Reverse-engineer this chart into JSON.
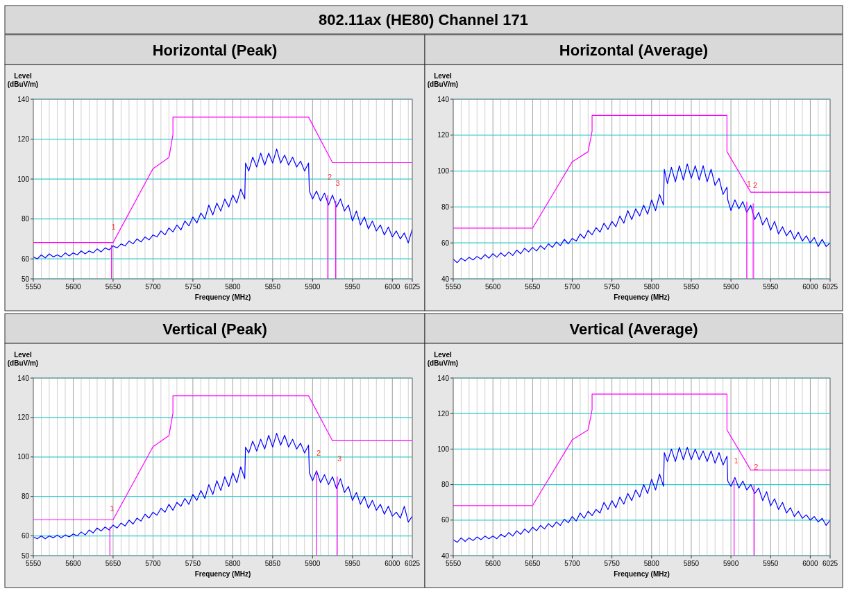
{
  "chart_data": [
    {
      "type": "line",
      "title": "Horizontal (Peak)",
      "xlabel": "Frequency (MHz)",
      "ylabel": "Level (dBuV/m)",
      "grid": true,
      "annotations": [
        "802.11ax (HE80) Channel 171",
        {
          "text": "1",
          "x": 5648,
          "y": 67
        },
        {
          "text": "2",
          "x": 5919,
          "y": 92
        },
        {
          "text": "3",
          "x": 5929,
          "y": 89
        }
      ],
      "xlim": [
        5550,
        6025
      ],
      "ylim": [
        50,
        140
      ],
      "yticks": [
        50,
        60,
        80,
        100,
        120,
        140
      ],
      "xticks": [
        5550,
        {
          "value": 5560,
          "label": null
        },
        {
          "value": 5570,
          "label": null
        },
        {
          "value": 5580,
          "label": null
        },
        {
          "value": 5590,
          "label": null
        },
        5600,
        {
          "value": 5610,
          "label": null
        },
        {
          "value": 5620,
          "label": null
        },
        {
          "value": 5630,
          "label": null
        },
        {
          "value": 5640,
          "label": null
        },
        5650,
        {
          "value": 5660,
          "label": null
        },
        {
          "value": 5670,
          "label": null
        },
        {
          "value": 5680,
          "label": null
        },
        {
          "value": 5690,
          "label": null
        },
        5700,
        {
          "value": 5710,
          "label": null
        },
        {
          "value": 5720,
          "label": null
        },
        {
          "value": 5730,
          "label": null
        },
        {
          "value": 5740,
          "label": null
        },
        5750,
        {
          "value": 5760,
          "label": null
        },
        {
          "value": 5770,
          "label": null
        },
        {
          "value": 5780,
          "label": null
        },
        {
          "value": 5790,
          "label": null
        },
        5800,
        {
          "value": 5810,
          "label": null
        },
        {
          "value": 5820,
          "label": null
        },
        {
          "value": 5830,
          "label": null
        },
        {
          "value": 5840,
          "label": null
        },
        5850,
        {
          "value": 5860,
          "label": null
        },
        {
          "value": 5870,
          "label": null
        },
        {
          "value": 5880,
          "label": null
        },
        {
          "value": 5890,
          "label": null
        },
        5900,
        {
          "value": 5910,
          "label": null
        },
        {
          "value": 5920,
          "label": null
        },
        {
          "value": 5930,
          "label": null
        },
        {
          "value": 5940,
          "label": null
        },
        5950,
        {
          "value": 5960,
          "label": null
        },
        {
          "value": 5970,
          "label": null
        },
        {
          "value": 5980,
          "label": null
        },
        {
          "value": 5990,
          "label": null
        },
        6000,
        {
          "value": 6010,
          "label": null
        },
        {
          "value": 6020,
          "label": null
        },
        6025
      ],
      "x": [
        5550,
        5555,
        5560,
        5565,
        5570,
        5575,
        5580,
        5585,
        5590,
        5595,
        5600,
        5605,
        5610,
        5615,
        5620,
        5625,
        5630,
        5635,
        5640,
        5645,
        5650,
        5655,
        5660,
        5665,
        5670,
        5675,
        5680,
        5685,
        5690,
        5695,
        5700,
        5705,
        5710,
        5715,
        5720,
        5725,
        5730,
        5735,
        5740,
        5745,
        5750,
        5755,
        5760,
        5765,
        5770,
        5775,
        5780,
        5785,
        5790,
        5795,
        5800,
        5805,
        5810,
        5815,
        5816,
        5820,
        5825,
        5830,
        5835,
        5840,
        5845,
        5850,
        5855,
        5860,
        5865,
        5870,
        5875,
        5880,
        5885,
        5890,
        5895,
        5896,
        5900,
        5905,
        5910,
        5915,
        5920,
        5925,
        5930,
        5935,
        5940,
        5945,
        5950,
        5955,
        5960,
        5965,
        5970,
        5975,
        5980,
        5985,
        5990,
        5995,
        6000,
        6005,
        6010,
        6015,
        6020,
        6025
      ],
      "series": [
        {
          "color": "#0000ff",
          "values": [
            61,
            60,
            62,
            60.5,
            62.5,
            61,
            62,
            61,
            63,
            61.5,
            63,
            62,
            64,
            62.5,
            64,
            63,
            65,
            63.5,
            65.5,
            64.5,
            66.5,
            65.5,
            67.5,
            66.5,
            69,
            67.5,
            70,
            68.5,
            71,
            69.5,
            72,
            71,
            74,
            72,
            75.5,
            73.5,
            77,
            74.5,
            79,
            76.5,
            81,
            78,
            83,
            80,
            87,
            82,
            88,
            84,
            90,
            86,
            92,
            88,
            95,
            90,
            108,
            104,
            111,
            106,
            113,
            107,
            113,
            108,
            115,
            108,
            112,
            107,
            111,
            106,
            109,
            104,
            108,
            94,
            90,
            94,
            89,
            93,
            87,
            92,
            86,
            90,
            84,
            87,
            79,
            84,
            77,
            81,
            75,
            79,
            74,
            77,
            72,
            76,
            71,
            74,
            70,
            73,
            68,
            75
          ]
        },
        {
          "color": "#ff00ff",
          "x": [
            5550,
            5650,
            5700,
            5720,
            5725,
            5725,
            5895,
            5925,
            6025
          ],
          "values": [
            68.2,
            68.2,
            105.2,
            110.8,
            122.2,
            131,
            131,
            108.2,
            108.2
          ]
        }
      ]
    },
    {
      "type": "line",
      "title": "Horizontal (Average)",
      "xlabel": "Frequency (MHz)",
      "ylabel": "Level (dBuV/m)",
      "grid": true,
      "annotations": [
        {
          "text": "1",
          "x": 5920,
          "y": 83
        },
        {
          "text": "2",
          "x": 5928,
          "y": 82
        }
      ],
      "xlim": [
        5550,
        6025
      ],
      "ylim": [
        40,
        140
      ],
      "yticks": [
        40,
        60,
        80,
        100,
        120,
        140
      ],
      "xticks": [
        5550,
        {
          "value": 5560,
          "label": null
        },
        {
          "value": 5570,
          "label": null
        },
        {
          "value": 5580,
          "label": null
        },
        {
          "value": 5590,
          "label": null
        },
        5600,
        {
          "value": 5610,
          "label": null
        },
        {
          "value": 5620,
          "label": null
        },
        {
          "value": 5630,
          "label": null
        },
        {
          "value": 5640,
          "label": null
        },
        5650,
        {
          "value": 5660,
          "label": null
        },
        {
          "value": 5670,
          "label": null
        },
        {
          "value": 5680,
          "label": null
        },
        {
          "value": 5690,
          "label": null
        },
        5700,
        {
          "value": 5710,
          "label": null
        },
        {
          "value": 5720,
          "label": null
        },
        {
          "value": 5730,
          "label": null
        },
        {
          "value": 5740,
          "label": null
        },
        5750,
        {
          "value": 5760,
          "label": null
        },
        {
          "value": 5770,
          "label": null
        },
        {
          "value": 5780,
          "label": null
        },
        {
          "value": 5790,
          "label": null
        },
        5800,
        {
          "value": 5810,
          "label": null
        },
        {
          "value": 5820,
          "label": null
        },
        {
          "value": 5830,
          "label": null
        },
        {
          "value": 5840,
          "label": null
        },
        5850,
        {
          "value": 5860,
          "label": null
        },
        {
          "value": 5870,
          "label": null
        },
        {
          "value": 5880,
          "label": null
        },
        {
          "value": 5890,
          "label": null
        },
        5900,
        {
          "value": 5910,
          "label": null
        },
        {
          "value": 5920,
          "label": null
        },
        {
          "value": 5930,
          "label": null
        },
        {
          "value": 5940,
          "label": null
        },
        5950,
        {
          "value": 5960,
          "label": null
        },
        {
          "value": 5970,
          "label": null
        },
        {
          "value": 5980,
          "label": null
        },
        {
          "value": 5990,
          "label": null
        },
        6000,
        {
          "value": 6010,
          "label": null
        },
        {
          "value": 6020,
          "label": null
        },
        6025
      ],
      "x": [
        5550,
        5555,
        5560,
        5565,
        5570,
        5575,
        5580,
        5585,
        5590,
        5595,
        5600,
        5605,
        5610,
        5615,
        5620,
        5625,
        5630,
        5635,
        5640,
        5645,
        5650,
        5655,
        5660,
        5665,
        5670,
        5675,
        5680,
        5685,
        5690,
        5695,
        5700,
        5705,
        5710,
        5715,
        5720,
        5725,
        5730,
        5735,
        5740,
        5745,
        5750,
        5755,
        5760,
        5765,
        5770,
        5775,
        5780,
        5785,
        5790,
        5795,
        5800,
        5805,
        5810,
        5815,
        5816,
        5820,
        5825,
        5830,
        5835,
        5840,
        5845,
        5850,
        5855,
        5860,
        5865,
        5870,
        5875,
        5880,
        5885,
        5890,
        5895,
        5896,
        5900,
        5905,
        5910,
        5915,
        5920,
        5925,
        5930,
        5935,
        5940,
        5945,
        5950,
        5955,
        5960,
        5965,
        5970,
        5975,
        5980,
        5985,
        5990,
        5995,
        6000,
        6005,
        6010,
        6015,
        6020,
        6025
      ],
      "series": [
        {
          "color": "#0000ff",
          "values": [
            51,
            49,
            51.5,
            50,
            52,
            50.5,
            52.5,
            51,
            53.5,
            51.5,
            54,
            52,
            54.5,
            52.5,
            55,
            53,
            56,
            54,
            57,
            55,
            57.5,
            55.5,
            58.5,
            56.5,
            59.5,
            57.5,
            60.5,
            58.5,
            62,
            59.5,
            62.5,
            61,
            65,
            62.5,
            67,
            64.5,
            68.5,
            66,
            71,
            67.5,
            72,
            69,
            75,
            71,
            78,
            73,
            79,
            75,
            81,
            76,
            84,
            78,
            87,
            81,
            101,
            93,
            102,
            94,
            103,
            95,
            104,
            96,
            103,
            95,
            103,
            94,
            101,
            92,
            96,
            87,
            91,
            84,
            78,
            84,
            79,
            83,
            77,
            81,
            73,
            77,
            70,
            74,
            67,
            72,
            65,
            69,
            64,
            67,
            62,
            66,
            61,
            64,
            60,
            63,
            58,
            62,
            58,
            60
          ]
        },
        {
          "color": "#ff00ff",
          "x": [
            5550,
            5650,
            5700,
            5720,
            5725,
            5725,
            5895,
            5895,
            5925,
            6025
          ],
          "values": [
            68.2,
            68.2,
            105.2,
            110.8,
            122.2,
            131,
            131,
            110.8,
            88.2,
            88.2
          ]
        }
      ]
    },
    {
      "type": "line",
      "title": "Vertical (Peak)",
      "xlabel": "Frequency (MHz)",
      "ylabel": "Level (dBuV/m)",
      "grid": true,
      "annotations": [
        {
          "text": "1",
          "x": 5646,
          "y": 64.6
        },
        {
          "text": "2",
          "x": 5905,
          "y": 92.8
        },
        {
          "text": "3",
          "x": 5931,
          "y": 90.1
        }
      ],
      "xlim": [
        5550,
        6025
      ],
      "ylim": [
        50,
        140
      ],
      "yticks": [
        50,
        60,
        80,
        100,
        120,
        140
      ],
      "xticks": [
        5550,
        {
          "value": 5560,
          "label": null
        },
        {
          "value": 5570,
          "label": null
        },
        {
          "value": 5580,
          "label": null
        },
        {
          "value": 5590,
          "label": null
        },
        5600,
        {
          "value": 5610,
          "label": null
        },
        {
          "value": 5620,
          "label": null
        },
        {
          "value": 5630,
          "label": null
        },
        {
          "value": 5640,
          "label": null
        },
        5650,
        {
          "value": 5660,
          "label": null
        },
        {
          "value": 5670,
          "label": null
        },
        {
          "value": 5680,
          "label": null
        },
        {
          "value": 5690,
          "label": null
        },
        5700,
        {
          "value": 5710,
          "label": null
        },
        {
          "value": 5720,
          "label": null
        },
        {
          "value": 5730,
          "label": null
        },
        {
          "value": 5740,
          "label": null
        },
        5750,
        {
          "value": 5760,
          "label": null
        },
        {
          "value": 5770,
          "label": null
        },
        {
          "value": 5780,
          "label": null
        },
        {
          "value": 5790,
          "label": null
        },
        5800,
        {
          "value": 5810,
          "label": null
        },
        {
          "value": 5820,
          "label": null
        },
        {
          "value": 5830,
          "label": null
        },
        {
          "value": 5840,
          "label": null
        },
        5850,
        {
          "value": 5860,
          "label": null
        },
        {
          "value": 5870,
          "label": null
        },
        {
          "value": 5880,
          "label": null
        },
        {
          "value": 5890,
          "label": null
        },
        5900,
        {
          "value": 5910,
          "label": null
        },
        {
          "value": 5920,
          "label": null
        },
        {
          "value": 5930,
          "label": null
        },
        {
          "value": 5940,
          "label": null
        },
        5950,
        {
          "value": 5960,
          "label": null
        },
        {
          "value": 5970,
          "label": null
        },
        {
          "value": 5980,
          "label": null
        },
        {
          "value": 5990,
          "label": null
        },
        6000,
        {
          "value": 6010,
          "label": null
        },
        {
          "value": 6020,
          "label": null
        },
        6025
      ],
      "x": [
        5550,
        5555,
        5560,
        5565,
        5570,
        5575,
        5580,
        5585,
        5590,
        5595,
        5600,
        5605,
        5610,
        5615,
        5620,
        5625,
        5630,
        5635,
        5640,
        5645,
        5650,
        5655,
        5660,
        5665,
        5670,
        5675,
        5680,
        5685,
        5690,
        5695,
        5700,
        5705,
        5710,
        5715,
        5720,
        5725,
        5730,
        5735,
        5740,
        5745,
        5750,
        5755,
        5760,
        5765,
        5770,
        5775,
        5780,
        5785,
        5790,
        5795,
        5800,
        5805,
        5810,
        5815,
        5816,
        5820,
        5825,
        5830,
        5835,
        5840,
        5845,
        5850,
        5855,
        5860,
        5865,
        5870,
        5875,
        5880,
        5885,
        5890,
        5895,
        5896,
        5900,
        5905,
        5910,
        5915,
        5920,
        5925,
        5930,
        5935,
        5940,
        5945,
        5950,
        5955,
        5960,
        5965,
        5970,
        5975,
        5980,
        5985,
        5990,
        5995,
        6000,
        6005,
        6010,
        6015,
        6020,
        6025
      ],
      "series": [
        {
          "color": "#0000ff",
          "values": [
            59.5,
            58.5,
            60,
            58.5,
            60,
            59,
            60.5,
            59,
            60.5,
            59.5,
            61,
            60,
            62,
            60.5,
            63,
            61.5,
            64,
            62.5,
            64.5,
            63,
            65.5,
            64,
            66.5,
            65,
            68,
            66,
            69,
            67.5,
            71,
            69,
            72,
            70.5,
            74,
            72,
            76,
            73,
            77,
            75,
            79,
            76,
            81,
            78,
            83,
            79,
            86,
            81,
            88,
            83,
            90,
            85,
            92,
            87,
            95,
            89,
            105,
            102,
            108,
            103,
            109,
            104,
            111,
            105,
            112,
            106,
            111,
            105,
            109,
            104,
            107,
            102,
            106,
            92,
            88,
            93,
            87,
            91,
            86,
            90,
            84,
            89,
            82,
            85,
            78,
            82,
            76,
            80,
            74,
            78,
            73,
            76,
            71,
            75,
            70,
            72,
            69,
            75,
            67,
            70
          ]
        },
        {
          "color": "#ff00ff",
          "x": [
            5550,
            5650,
            5700,
            5720,
            5725,
            5725,
            5895,
            5925,
            6025
          ],
          "values": [
            68.2,
            68.2,
            105.2,
            110.8,
            122.2,
            131,
            131,
            108.2,
            108.2
          ]
        }
      ]
    },
    {
      "type": "line",
      "title": "Vertical (Average)",
      "xlabel": "Frequency (MHz)",
      "ylabel": "Level (dBuV/m)",
      "grid": true,
      "annotations": [
        {
          "text": "1",
          "x": 5904,
          "y": 83.4
        },
        {
          "text": "2",
          "x": 5929,
          "y": 79.7
        }
      ],
      "xlim": [
        5550,
        6025
      ],
      "ylim": [
        40,
        140
      ],
      "yticks": [
        40,
        60,
        80,
        100,
        120,
        140
      ],
      "xticks": [
        5550,
        {
          "value": 5560,
          "label": null
        },
        {
          "value": 5570,
          "label": null
        },
        {
          "value": 5580,
          "label": null
        },
        {
          "value": 5590,
          "label": null
        },
        5600,
        {
          "value": 5610,
          "label": null
        },
        {
          "value": 5620,
          "label": null
        },
        {
          "value": 5630,
          "label": null
        },
        {
          "value": 5640,
          "label": null
        },
        5650,
        {
          "value": 5660,
          "label": null
        },
        {
          "value": 5670,
          "label": null
        },
        {
          "value": 5680,
          "label": null
        },
        {
          "value": 5690,
          "label": null
        },
        5700,
        {
          "value": 5710,
          "label": null
        },
        {
          "value": 5720,
          "label": null
        },
        {
          "value": 5730,
          "label": null
        },
        {
          "value": 5740,
          "label": null
        },
        5750,
        {
          "value": 5760,
          "label": null
        },
        {
          "value": 5770,
          "label": null
        },
        {
          "value": 5780,
          "label": null
        },
        {
          "value": 5790,
          "label": null
        },
        5800,
        {
          "value": 5810,
          "label": null
        },
        {
          "value": 5820,
          "label": null
        },
        {
          "value": 5830,
          "label": null
        },
        {
          "value": 5840,
          "label": null
        },
        5850,
        {
          "value": 5860,
          "label": null
        },
        {
          "value": 5870,
          "label": null
        },
        {
          "value": 5880,
          "label": null
        },
        {
          "value": 5890,
          "label": null
        },
        5900,
        {
          "value": 5910,
          "label": null
        },
        {
          "value": 5920,
          "label": null
        },
        {
          "value": 5930,
          "label": null
        },
        {
          "value": 5940,
          "label": null
        },
        5950,
        {
          "value": 5960,
          "label": null
        },
        {
          "value": 5970,
          "label": null
        },
        {
          "value": 5980,
          "label": null
        },
        {
          "value": 5990,
          "label": null
        },
        6000,
        {
          "value": 6010,
          "label": null
        },
        {
          "value": 6020,
          "label": null
        },
        6025
      ],
      "x": [
        5550,
        5555,
        5560,
        5565,
        5570,
        5575,
        5580,
        5585,
        5590,
        5595,
        5600,
        5605,
        5610,
        5615,
        5620,
        5625,
        5630,
        5635,
        5640,
        5645,
        5650,
        5655,
        5660,
        5665,
        5670,
        5675,
        5680,
        5685,
        5690,
        5695,
        5700,
        5705,
        5710,
        5715,
        5720,
        5725,
        5730,
        5735,
        5740,
        5745,
        5750,
        5755,
        5760,
        5765,
        5770,
        5775,
        5780,
        5785,
        5790,
        5795,
        5800,
        5805,
        5810,
        5815,
        5816,
        5820,
        5825,
        5830,
        5835,
        5840,
        5845,
        5850,
        5855,
        5860,
        5865,
        5870,
        5875,
        5880,
        5885,
        5890,
        5895,
        5896,
        5900,
        5905,
        5910,
        5915,
        5920,
        5925,
        5930,
        5935,
        5940,
        5945,
        5950,
        5955,
        5960,
        5965,
        5970,
        5975,
        5980,
        5985,
        5990,
        5995,
        6000,
        6005,
        6010,
        6015,
        6020,
        6025
      ],
      "series": [
        {
          "color": "#0000ff",
          "values": [
            49,
            47.5,
            50,
            48,
            50,
            48.5,
            50.5,
            49,
            51,
            49.5,
            51,
            49.5,
            52,
            50.5,
            53,
            51,
            54,
            52,
            55,
            53,
            56,
            54,
            57,
            55,
            58,
            56,
            59,
            57,
            60.5,
            58.5,
            62,
            59.5,
            64,
            61,
            65,
            62.5,
            66,
            64,
            70,
            66,
            71,
            67,
            73,
            69,
            75,
            71,
            77,
            73,
            80,
            75,
            83,
            77,
            86,
            79,
            98,
            93,
            100,
            93,
            101,
            94,
            101,
            94,
            100,
            94,
            99,
            93,
            99,
            92,
            98,
            91,
            96,
            82,
            79,
            84,
            78,
            82,
            77,
            80,
            75,
            78,
            71,
            76,
            68,
            72,
            66,
            70,
            64,
            67,
            62,
            65,
            61,
            63,
            60,
            62,
            59,
            61,
            57,
            60
          ]
        },
        {
          "color": "#ff00ff",
          "x": [
            5550,
            5650,
            5700,
            5720,
            5725,
            5725,
            5895,
            5895,
            5925,
            6025
          ],
          "values": [
            68.2,
            68.2,
            105.2,
            110.8,
            122.2,
            131,
            131,
            110.8,
            88.2,
            88.2
          ]
        }
      ]
    }
  ]
}
